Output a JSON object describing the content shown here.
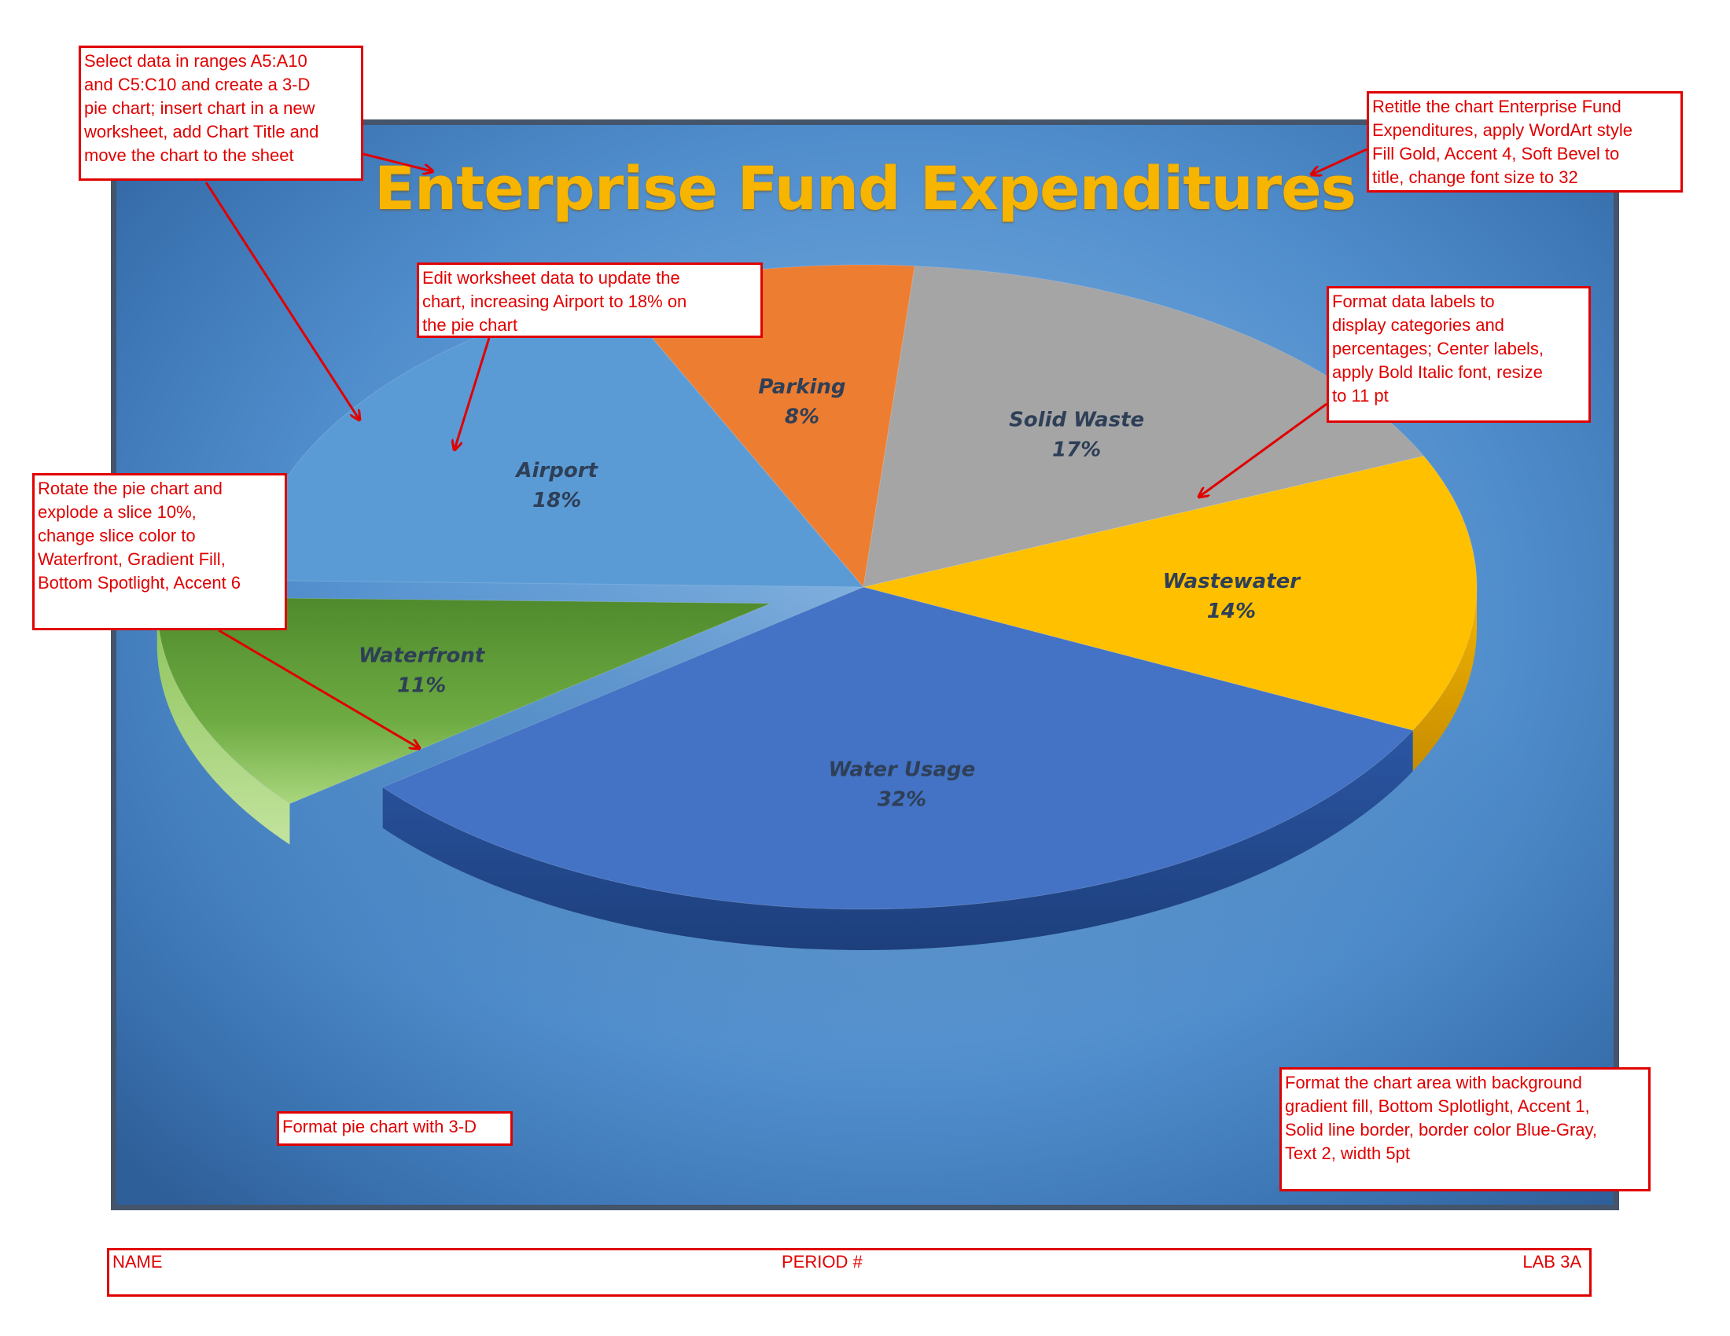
{
  "chart_data": {
    "type": "pie",
    "title": "Enterprise Fund Expenditures",
    "slices": [
      {
        "label": "Airport",
        "value": 18,
        "value_label": "18%",
        "color": "#5b9bd5"
      },
      {
        "label": "Parking",
        "value": 8,
        "value_label": "8%",
        "color": "#ed7d31"
      },
      {
        "label": "Solid Waste",
        "value": 17,
        "value_label": "17%",
        "color": "#a5a5a5"
      },
      {
        "label": "Wastewater",
        "value": 14,
        "value_label": "14%",
        "color": "#ffc000"
      },
      {
        "label": "Water Usage",
        "value": 32,
        "value_label": "32%",
        "color": "#4472c4"
      },
      {
        "label": "Waterfront",
        "value": 11,
        "value_label": "11%",
        "color": "#70ad47",
        "exploded": true
      }
    ],
    "three_d": true,
    "legend": "none"
  },
  "notes": {
    "select_data": "Select data in ranges A5:A10\nand C5:C10 and create a 3-D\npie chart; insert chart in a new\nworksheet, add Chart Title and\nmove the chart to the sheet",
    "retitle": "Retitle the chart Enterprise Fund\nExpenditures, apply WordArt style\nFill Gold, Accent 4, Soft Bevel to\ntitle, change font size to 32",
    "edit_data": "Edit worksheet data to update the\nchart, increasing Airport to 18% on\nthe pie chart",
    "format_labels": "Format data labels to\ndisplay categories and\npercentages; Center labels,\napply Bold Italic font, resize\nto 11 pt",
    "rotate": "Rotate the pie chart and\nexplode a slice 10%,\nchange slice color to\nWaterfront, Gradient Fill,\nBottom Spotlight, Accent 6",
    "format_3d": "Format pie chart with 3-D",
    "format_area": "Format the chart area with background\ngradient fill, Bottom Splotlight, Accent 1,\nSolid line border, border color Blue-Gray,\nText 2, width 5pt"
  },
  "footer": {
    "name": "NAME",
    "period": "PERIOD #",
    "lab": "LAB 3A"
  }
}
